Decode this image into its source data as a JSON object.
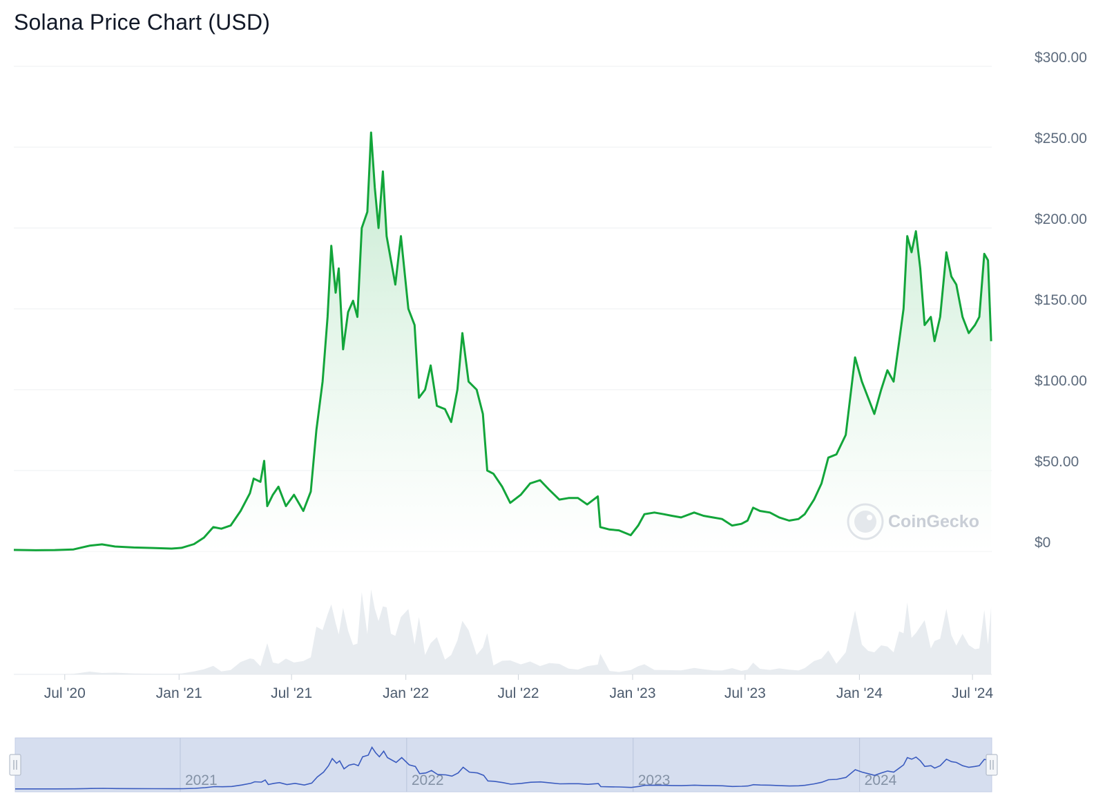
{
  "title": "Solana Price Chart (USD)",
  "watermark": "CoinGecko",
  "colors": {
    "line": "#12a53a",
    "area_top": "#c9ecd3",
    "volume": "#e3e7ec",
    "grid": "#e9ecef",
    "navigator": "#d6deef",
    "navigator_line": "#3a5bbf"
  },
  "chart_data": {
    "type": "area",
    "title": "Solana Price Chart (USD)",
    "xlabel": "",
    "ylabel": "",
    "ylim": [
      0,
      300
    ],
    "grid": true,
    "y_ticks": [
      "$0",
      "$50.00",
      "$100.00",
      "$150.00",
      "$200.00",
      "$250.00",
      "$300.00"
    ],
    "y_tick_values": [
      0,
      50,
      100,
      150,
      200,
      250,
      300
    ],
    "x_ticks": [
      {
        "label": "Jul '20",
        "date": "2020-07-01"
      },
      {
        "label": "Jan '21",
        "date": "2021-01-01"
      },
      {
        "label": "Jul '21",
        "date": "2021-07-01"
      },
      {
        "label": "Jan '22",
        "date": "2022-01-01"
      },
      {
        "label": "Jul '22",
        "date": "2022-07-01"
      },
      {
        "label": "Jan '23",
        "date": "2023-01-01"
      },
      {
        "label": "Jul '23",
        "date": "2023-07-01"
      },
      {
        "label": "Jan '24",
        "date": "2024-01-01"
      },
      {
        "label": "Jul '24",
        "date": "2024-07-01"
      }
    ],
    "navigator_ticks": [
      {
        "label": "2021",
        "date": "2021-01-01"
      },
      {
        "label": "2022",
        "date": "2022-01-01"
      },
      {
        "label": "2023",
        "date": "2023-01-01"
      },
      {
        "label": "2024",
        "date": "2024-01-01"
      }
    ],
    "x_range": [
      "2020-04-10",
      "2024-08-01"
    ],
    "series": [
      {
        "values": [
          [
            "2020-04-10",
            0.9
          ],
          [
            "2020-05-15",
            0.7
          ],
          [
            "2020-06-15",
            0.8
          ],
          [
            "2020-07-15",
            1.2
          ],
          [
            "2020-08-10",
            3.5
          ],
          [
            "2020-08-30",
            4.3
          ],
          [
            "2020-09-20",
            3.0
          ],
          [
            "2020-10-20",
            2.4
          ],
          [
            "2020-11-20",
            2.1
          ],
          [
            "2020-12-20",
            1.7
          ],
          [
            "2021-01-05",
            2.2
          ],
          [
            "2021-01-25",
            4.5
          ],
          [
            "2021-02-10",
            8.5
          ],
          [
            "2021-02-25",
            15.0
          ],
          [
            "2021-03-10",
            14.0
          ],
          [
            "2021-03-25",
            16.0
          ],
          [
            "2021-04-10",
            25.0
          ],
          [
            "2021-04-25",
            36.0
          ],
          [
            "2021-05-01",
            45.0
          ],
          [
            "2021-05-12",
            43.0
          ],
          [
            "2021-05-18",
            56.0
          ],
          [
            "2021-05-23",
            28.0
          ],
          [
            "2021-06-01",
            35.0
          ],
          [
            "2021-06-10",
            40.0
          ],
          [
            "2021-06-22",
            28.0
          ],
          [
            "2021-07-05",
            35.0
          ],
          [
            "2021-07-20",
            25.0
          ],
          [
            "2021-08-01",
            37.0
          ],
          [
            "2021-08-10",
            75.0
          ],
          [
            "2021-08-20",
            105.0
          ],
          [
            "2021-08-28",
            145.0
          ],
          [
            "2021-09-03",
            189.0
          ],
          [
            "2021-09-10",
            160.0
          ],
          [
            "2021-09-15",
            175.0
          ],
          [
            "2021-09-22",
            125.0
          ],
          [
            "2021-09-30",
            148.0
          ],
          [
            "2021-10-08",
            155.0
          ],
          [
            "2021-10-15",
            145.0
          ],
          [
            "2021-10-22",
            200.0
          ],
          [
            "2021-10-31",
            210.0
          ],
          [
            "2021-11-06",
            259.0
          ],
          [
            "2021-11-12",
            225.0
          ],
          [
            "2021-11-18",
            200.0
          ],
          [
            "2021-11-25",
            235.0
          ],
          [
            "2021-12-01",
            195.0
          ],
          [
            "2021-12-08",
            180.0
          ],
          [
            "2021-12-15",
            165.0
          ],
          [
            "2021-12-24",
            195.0
          ],
          [
            "2022-01-05",
            150.0
          ],
          [
            "2022-01-15",
            140.0
          ],
          [
            "2022-01-22",
            95.0
          ],
          [
            "2022-02-01",
            100.0
          ],
          [
            "2022-02-10",
            115.0
          ],
          [
            "2022-02-20",
            90.0
          ],
          [
            "2022-03-05",
            88.0
          ],
          [
            "2022-03-15",
            80.0
          ],
          [
            "2022-03-25",
            100.0
          ],
          [
            "2022-04-02",
            135.0
          ],
          [
            "2022-04-12",
            105.0
          ],
          [
            "2022-04-25",
            100.0
          ],
          [
            "2022-05-05",
            85.0
          ],
          [
            "2022-05-12",
            50.0
          ],
          [
            "2022-05-22",
            48.0
          ],
          [
            "2022-06-05",
            40.0
          ],
          [
            "2022-06-18",
            30.0
          ],
          [
            "2022-07-05",
            35.0
          ],
          [
            "2022-07-20",
            42.0
          ],
          [
            "2022-08-05",
            44.0
          ],
          [
            "2022-08-20",
            38.0
          ],
          [
            "2022-09-05",
            32.0
          ],
          [
            "2022-09-20",
            33.0
          ],
          [
            "2022-10-05",
            33.0
          ],
          [
            "2022-10-20",
            29.0
          ],
          [
            "2022-11-06",
            34.0
          ],
          [
            "2022-11-10",
            15.0
          ],
          [
            "2022-11-25",
            13.5
          ],
          [
            "2022-12-10",
            13.0
          ],
          [
            "2022-12-29",
            10.0
          ],
          [
            "2023-01-10",
            16.0
          ],
          [
            "2023-01-20",
            23.0
          ],
          [
            "2023-02-05",
            24.0
          ],
          [
            "2023-02-20",
            23.0
          ],
          [
            "2023-03-05",
            22.0
          ],
          [
            "2023-03-20",
            21.0
          ],
          [
            "2023-04-10",
            24.0
          ],
          [
            "2023-04-25",
            22.0
          ],
          [
            "2023-05-10",
            21.0
          ],
          [
            "2023-05-25",
            20.0
          ],
          [
            "2023-06-10",
            16.0
          ],
          [
            "2023-06-25",
            17.0
          ],
          [
            "2023-07-05",
            19.0
          ],
          [
            "2023-07-14",
            27.0
          ],
          [
            "2023-07-25",
            25.0
          ],
          [
            "2023-08-10",
            24.0
          ],
          [
            "2023-08-25",
            21.0
          ],
          [
            "2023-09-10",
            19.0
          ],
          [
            "2023-09-25",
            20.0
          ],
          [
            "2023-10-05",
            23.0
          ],
          [
            "2023-10-20",
            32.0
          ],
          [
            "2023-11-01",
            42.0
          ],
          [
            "2023-11-12",
            58.0
          ],
          [
            "2023-11-25",
            60.0
          ],
          [
            "2023-12-10",
            72.0
          ],
          [
            "2023-12-25",
            120.0
          ],
          [
            "2024-01-05",
            105.0
          ],
          [
            "2024-01-15",
            95.0
          ],
          [
            "2024-01-25",
            85.0
          ],
          [
            "2024-02-05",
            100.0
          ],
          [
            "2024-02-15",
            112.0
          ],
          [
            "2024-02-25",
            105.0
          ],
          [
            "2024-03-05",
            130.0
          ],
          [
            "2024-03-12",
            150.0
          ],
          [
            "2024-03-18",
            195.0
          ],
          [
            "2024-03-25",
            185.0
          ],
          [
            "2024-04-01",
            198.0
          ],
          [
            "2024-04-08",
            175.0
          ],
          [
            "2024-04-15",
            140.0
          ],
          [
            "2024-04-25",
            145.0
          ],
          [
            "2024-05-01",
            130.0
          ],
          [
            "2024-05-10",
            145.0
          ],
          [
            "2024-05-20",
            185.0
          ],
          [
            "2024-05-28",
            170.0
          ],
          [
            "2024-06-05",
            165.0
          ],
          [
            "2024-06-15",
            145.0
          ],
          [
            "2024-06-25",
            135.0
          ],
          [
            "2024-07-05",
            140.0
          ],
          [
            "2024-07-12",
            145.0
          ],
          [
            "2024-07-20",
            184.0
          ],
          [
            "2024-07-26",
            180.0
          ],
          [
            "2024-07-31",
            130.0
          ]
        ]
      }
    ]
  }
}
